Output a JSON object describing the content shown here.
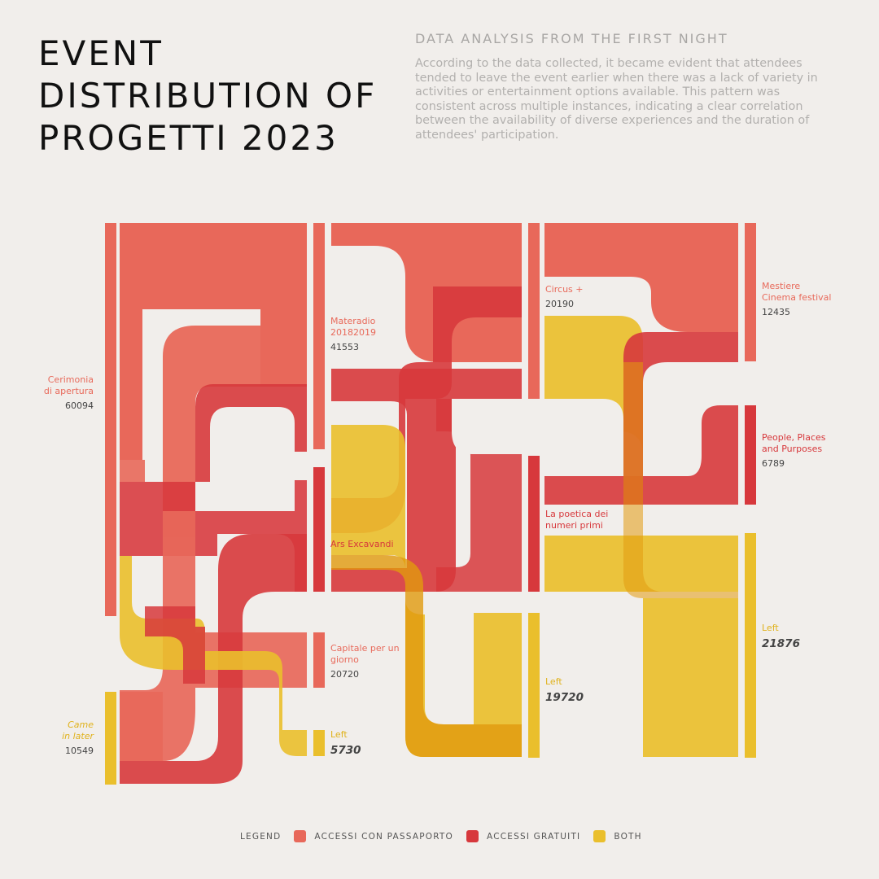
{
  "header": {
    "title": "EVENT DISTRIBUTION OF PROGETTI 2023",
    "subtitle": "DATA ANALYSIS FROM THE FIRST NIGHT",
    "description": "According to the data collected, it became evident that attendees tended to leave the event earlier when there was a lack of variety in activities or entertainment options available. This pattern was consistent across multiple instances, indicating a clear correlation between the availability of diverse experiences and the duration of attendees' participation."
  },
  "colors": {
    "passaporto": "#e8685a",
    "gratuiti": "#d7383c",
    "both": "#eabf2c",
    "background": "#f1eeeb"
  },
  "nodes": {
    "cerimonia": {
      "name": "Cerimonia\ndi apertura",
      "value": "60094"
    },
    "came_later": {
      "name": "Came\nin later",
      "value": "10549"
    },
    "materadio": {
      "name": "Materadio\n20182019",
      "value": "41553"
    },
    "ars": {
      "name": "Ars Excavandi"
    },
    "capitale": {
      "name": "Capitale per un\ngiorno",
      "value": "20720"
    },
    "left1": {
      "name": "Left",
      "value": "5730"
    },
    "circus": {
      "name": "Circus +",
      "value": "20190"
    },
    "poetica": {
      "name": "La poetica dei\nnumeri primi"
    },
    "left2": {
      "name": "Left",
      "value": "19720"
    },
    "mestiere": {
      "name": "Mestiere\nCinema festival",
      "value": "12435"
    },
    "people": {
      "name": "People, Places\nand Purposes",
      "value": "6789"
    },
    "left3": {
      "name": "Left",
      "value": "21876"
    }
  },
  "legend": {
    "title": "LEGEND",
    "items": [
      {
        "label": "ACCESSI CON PASSAPORTO",
        "color": "#e8685a"
      },
      {
        "label": "ACCESSI GRATUITI",
        "color": "#d7383c"
      },
      {
        "label": "BOTH",
        "color": "#eabf2c"
      }
    ]
  }
}
